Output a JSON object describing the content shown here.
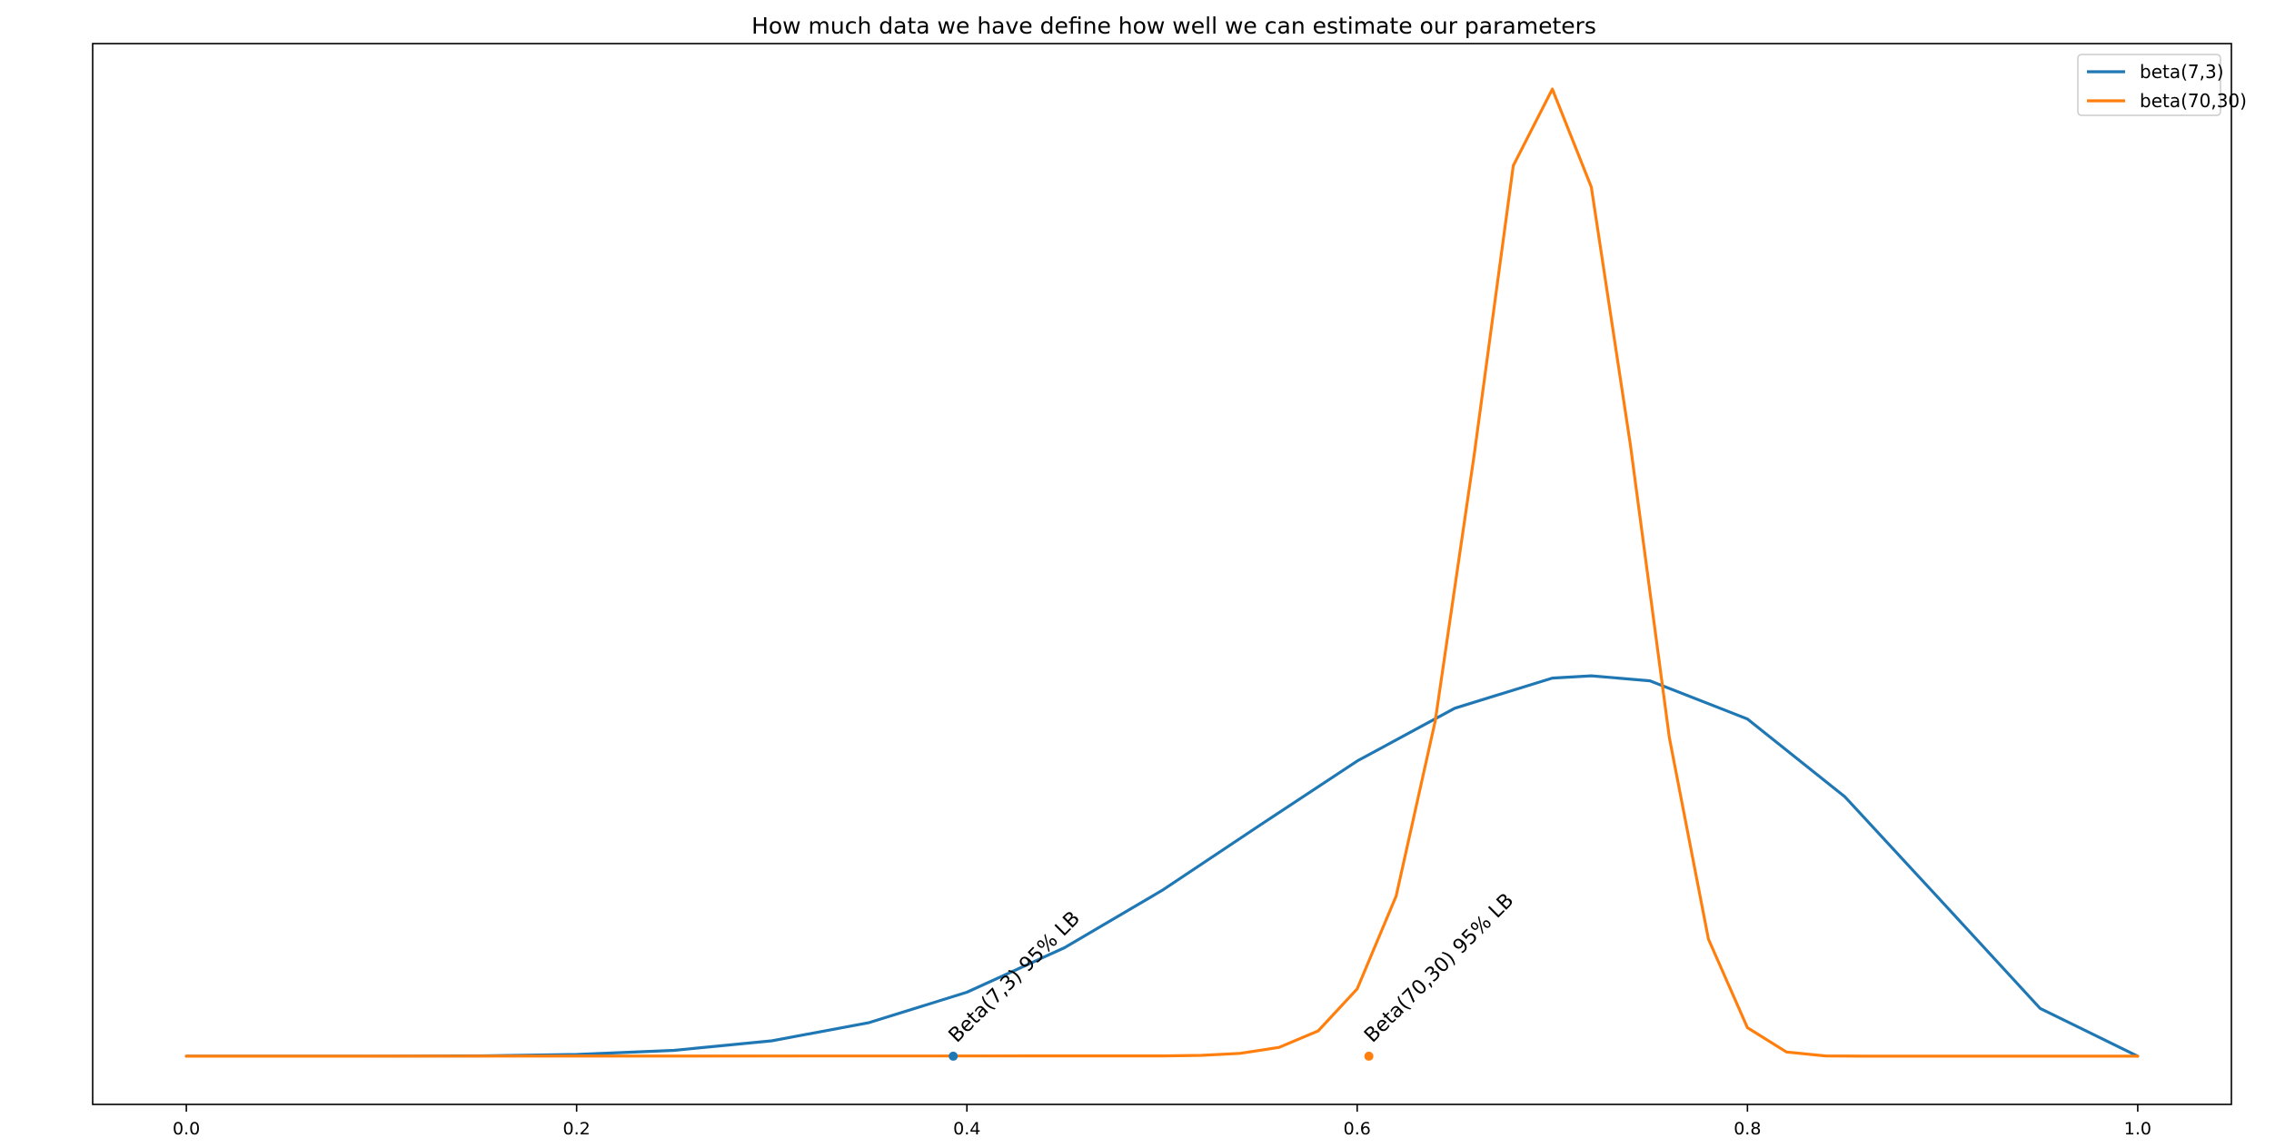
{
  "chart_data": {
    "type": "line",
    "title": "How much data we have define how well we can estimate our parameters",
    "xlabel": "",
    "ylabel": "",
    "xlim": [
      -0.048,
      1.048
    ],
    "ylim": [
      -0.45,
      9.45
    ],
    "grid": false,
    "legend_position": "top-right",
    "x_ticks": [
      0.0,
      0.2,
      0.4,
      0.6,
      0.8,
      1.0
    ],
    "x_tick_labels": [
      "0.0",
      "0.2",
      "0.4",
      "0.6",
      "0.8",
      "1.0"
    ],
    "y_ticks_shown": false,
    "colors": {
      "beta_7_3": "#1f77b4",
      "beta_70_30": "#ff7f0e",
      "axes": "#000000"
    },
    "series": [
      {
        "name": "beta(7,3)",
        "color": "#1f77b4",
        "x": [
          0.0,
          0.05,
          0.1,
          0.15,
          0.2,
          0.25,
          0.3,
          0.35,
          0.4,
          0.45,
          0.5,
          0.55,
          0.6,
          0.65,
          0.7,
          0.72,
          0.75,
          0.8,
          0.85,
          0.9,
          0.95,
          1.0
        ],
        "y": [
          0.0,
          0.0,
          0.0003,
          0.003,
          0.016,
          0.054,
          0.143,
          0.314,
          0.597,
          1.012,
          1.547,
          2.154,
          2.755,
          3.247,
          3.529,
          3.55,
          3.503,
          3.147,
          2.42,
          1.435,
          0.446,
          0.0
        ]
      },
      {
        "name": "beta(70,30)",
        "color": "#ff7f0e",
        "x": [
          0.0,
          0.5,
          0.52,
          0.54,
          0.56,
          0.58,
          0.6,
          0.62,
          0.64,
          0.66,
          0.68,
          0.7,
          0.72,
          0.74,
          0.76,
          0.78,
          0.8,
          0.82,
          0.84,
          0.86,
          0.88,
          1.0
        ],
        "y": [
          0.0,
          0.003,
          0.008,
          0.026,
          0.082,
          0.236,
          0.628,
          1.495,
          3.129,
          5.614,
          8.311,
          9.025,
          8.111,
          5.705,
          2.972,
          1.093,
          0.266,
          0.039,
          0.003,
          0.0,
          0.0,
          0.0
        ]
      }
    ],
    "markers": [
      {
        "x": 0.393,
        "y": 0.0,
        "color": "#1f77b4",
        "label": "Beta(7,3) 95% LB"
      },
      {
        "x": 0.606,
        "y": 0.0,
        "color": "#ff7f0e",
        "label": "Beta(70,30) 95% LB"
      }
    ]
  }
}
